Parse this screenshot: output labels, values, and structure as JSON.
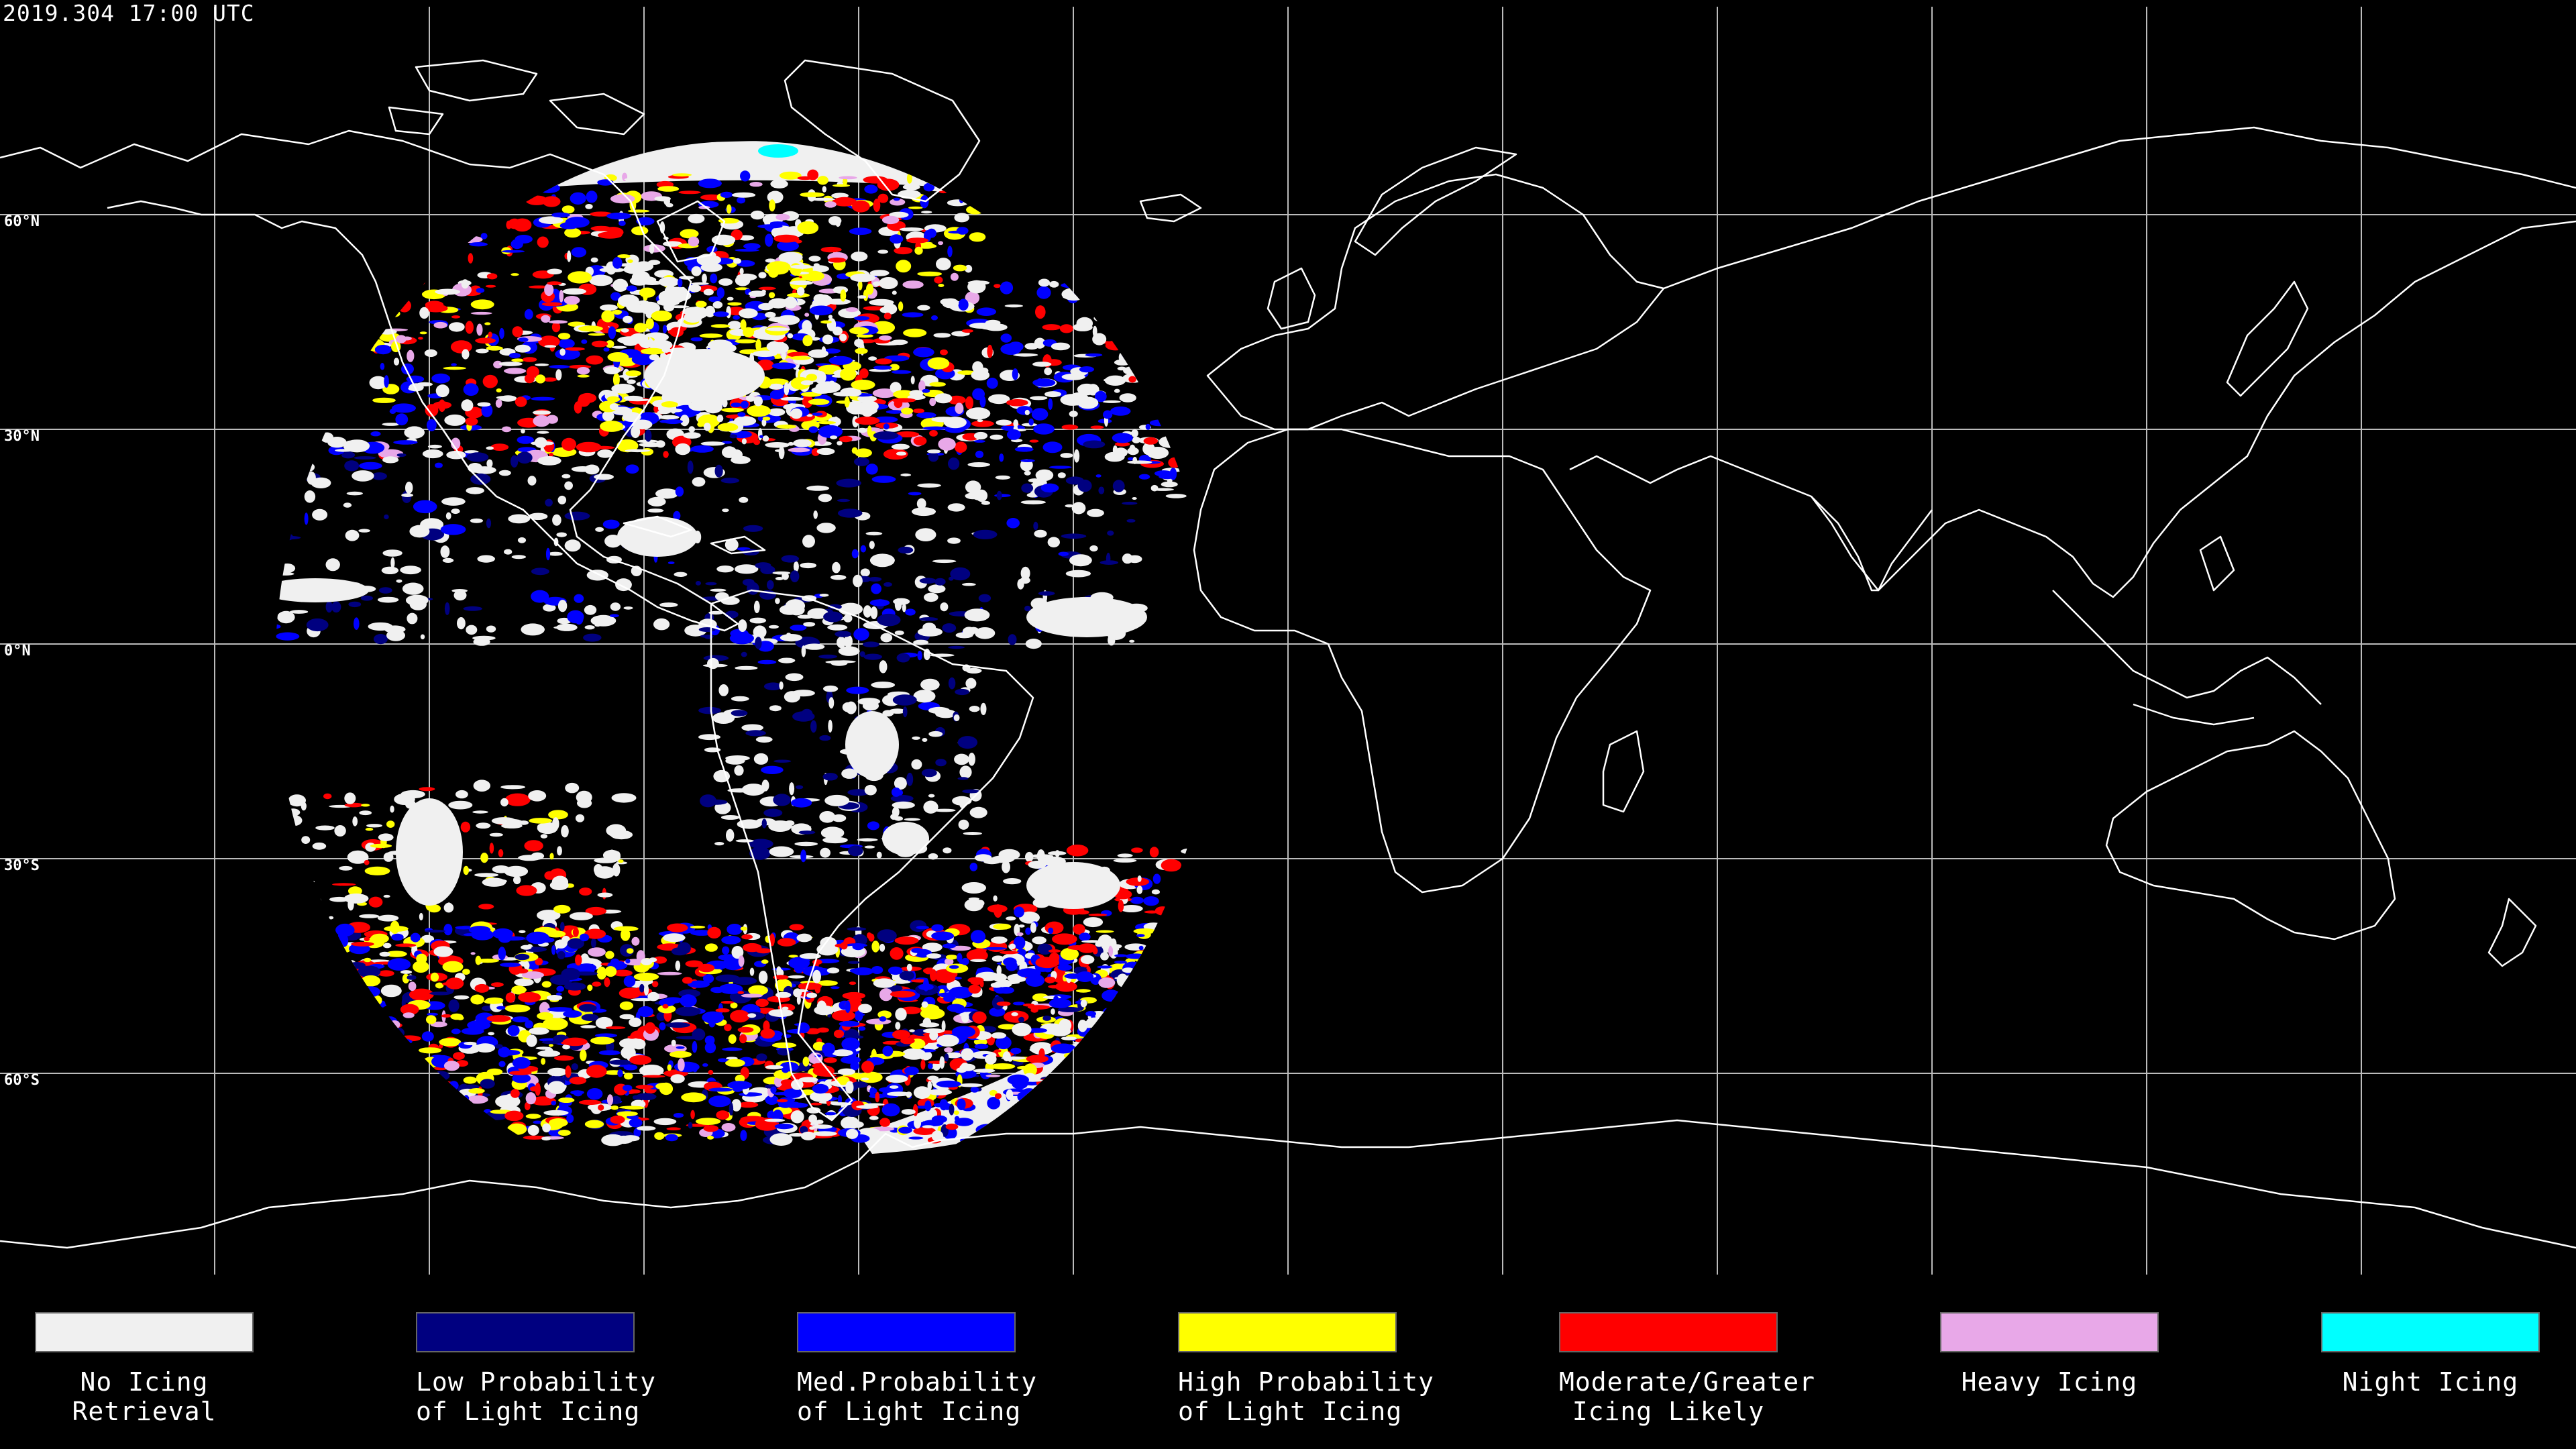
{
  "timestamp": "2019.304 17:00 UTC",
  "lat_labels": [
    "60°N",
    "30°N",
    "0°N",
    "30°S",
    "60°S"
  ],
  "colors": {
    "background": "#000000",
    "no_icing": "#f0f0f0",
    "low_prob": "#000080",
    "med_prob": "#0000ff",
    "high_prob": "#ffff00",
    "moderate": "#ff0000",
    "heavy": "#e8a8e8",
    "night": "#00ffff",
    "coast": "#ffffff",
    "grid": "#bbbbbb"
  },
  "legend": [
    {
      "line1": "No Icing",
      "line2": "Retrieval",
      "color": "#f0f0f0"
    },
    {
      "line1": "Low Probability",
      "line2": "of Light Icing",
      "color": "#000080"
    },
    {
      "line1": "Med.Probability",
      "line2": "of Light Icing",
      "color": "#0000ff"
    },
    {
      "line1": "High Probability",
      "line2": "of Light Icing",
      "color": "#ffff00"
    },
    {
      "line1": "Moderate/Greater",
      "line2": "Icing Likely",
      "color": "#ff0000"
    },
    {
      "line1": "Heavy Icing",
      "line2": "",
      "color": "#e8a8e8"
    },
    {
      "line1": "Night Icing",
      "line2": "",
      "color": "#00ffff"
    }
  ]
}
